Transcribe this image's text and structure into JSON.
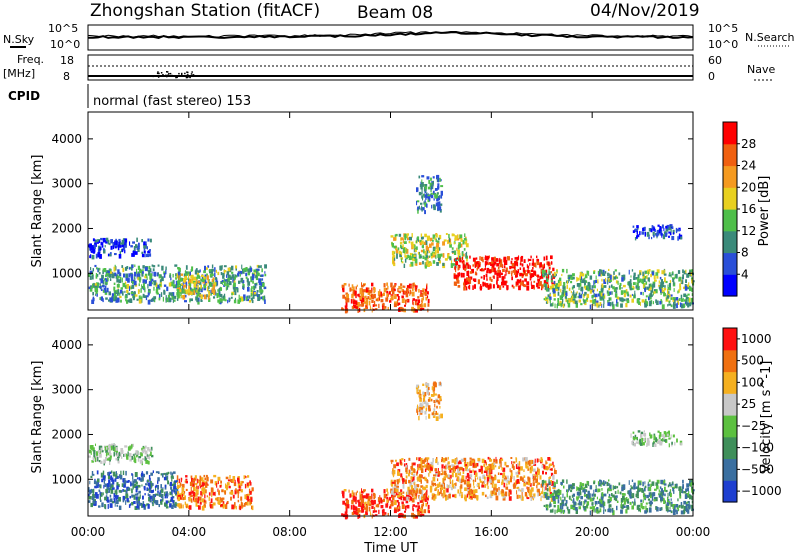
{
  "header": {
    "station": "Zhongshan Station (fitACF)",
    "beam": "Beam 08",
    "date": "04/Nov/2019"
  },
  "labels": {
    "nsky": "N.Sky",
    "nsearch": "N.Search",
    "freq": "Freq.",
    "mhz": "[MHz]",
    "nave": "Nave",
    "cpid": "CPID",
    "cpid_value": "normal (fast stereo) 153",
    "xlabel": "Time UT",
    "ylabel": "Slant Range [km]"
  },
  "ticks": {
    "noise_left_top": "10^5",
    "noise_left_bottom": "10^0",
    "noise_right_top": "10^5",
    "noise_right_bottom": "10^0",
    "freq_top": "18",
    "freq_bottom": "8",
    "nave_top": "60",
    "nave_bottom": "0"
  },
  "chart_data": [
    {
      "type": "heatmap",
      "title": "Power",
      "xlabel": "Time UT",
      "ylabel": "Slant Range [km]",
      "x_ticks": [
        "00:00",
        "04:00",
        "08:00",
        "12:00",
        "16:00",
        "20:00",
        "00:00"
      ],
      "xlim_hours": [
        0,
        24
      ],
      "y_ticks": [
        1000,
        2000,
        3000,
        4000
      ],
      "ylim": [
        180,
        4600
      ],
      "colorbar": {
        "label": "Power [dB]",
        "ticks": [
          4,
          8,
          12,
          16,
          20,
          24,
          28
        ],
        "range": [
          0,
          32
        ],
        "colors": [
          "#0000ff",
          "#2a4fd8",
          "#3a8a7a",
          "#4fbf4a",
          "#e8d020",
          "#f59a20",
          "#f06010",
          "#ff0000"
        ]
      },
      "echo_regions": [
        {
          "t": [
            0.0,
            2.5
          ],
          "r": [
            1400,
            1800
          ],
          "level": 0.15
        },
        {
          "t": [
            0.0,
            7.0
          ],
          "r": [
            400,
            1200
          ],
          "level": 0.35
        },
        {
          "t": [
            3.5,
            5.0
          ],
          "r": [
            500,
            1000
          ],
          "level": 0.55
        },
        {
          "t": [
            10.0,
            13.5
          ],
          "r": [
            200,
            800
          ],
          "level": 0.8
        },
        {
          "t": [
            12.0,
            15.0
          ],
          "r": [
            1200,
            1900
          ],
          "level": 0.5
        },
        {
          "t": [
            14.5,
            18.5
          ],
          "r": [
            700,
            1400
          ],
          "level": 0.95
        },
        {
          "t": [
            13.0,
            14.0
          ],
          "r": [
            2400,
            3200
          ],
          "level": 0.3
        },
        {
          "t": [
            18.0,
            24.0
          ],
          "r": [
            300,
            1100
          ],
          "level": 0.4
        },
        {
          "t": [
            21.5,
            23.5
          ],
          "r": [
            1800,
            2100
          ],
          "level": 0.15
        }
      ]
    },
    {
      "type": "heatmap",
      "title": "Velocity",
      "xlabel": "Time UT",
      "ylabel": "Slant Range [km]",
      "x_ticks": [
        "00:00",
        "04:00",
        "08:00",
        "12:00",
        "16:00",
        "20:00",
        "00:00"
      ],
      "xlim_hours": [
        0,
        24
      ],
      "y_ticks": [
        1000,
        2000,
        3000,
        4000
      ],
      "ylim": [
        180,
        4600
      ],
      "colorbar": {
        "label": "Velocity [m s^-1]",
        "ticks": [
          "1000",
          "500",
          "100",
          "25",
          "−25",
          "−100",
          "−500",
          "−1000"
        ],
        "colors": [
          "#1e3fd0",
          "#3a6fa0",
          "#3f8f5a",
          "#5cc040",
          "#c8c8c8",
          "#f5b020",
          "#f07010",
          "#ff1010"
        ]
      },
      "echo_regions": [
        {
          "t": [
            0.0,
            2.5
          ],
          "r": [
            1400,
            1800
          ],
          "level": 0.45
        },
        {
          "t": [
            0.0,
            3.5
          ],
          "r": [
            400,
            1200
          ],
          "level": 0.2
        },
        {
          "t": [
            3.5,
            6.5
          ],
          "r": [
            400,
            1100
          ],
          "level": 0.8
        },
        {
          "t": [
            10.0,
            13.5
          ],
          "r": [
            200,
            800
          ],
          "level": 0.9
        },
        {
          "t": [
            12.0,
            18.5
          ],
          "r": [
            600,
            1500
          ],
          "level": 0.75
        },
        {
          "t": [
            13.0,
            14.0
          ],
          "r": [
            2400,
            3200
          ],
          "level": 0.7
        },
        {
          "t": [
            18.0,
            24.0
          ],
          "r": [
            300,
            1000
          ],
          "level": 0.3
        },
        {
          "t": [
            21.5,
            23.5
          ],
          "r": [
            1800,
            2100
          ],
          "level": 0.45
        }
      ]
    }
  ]
}
